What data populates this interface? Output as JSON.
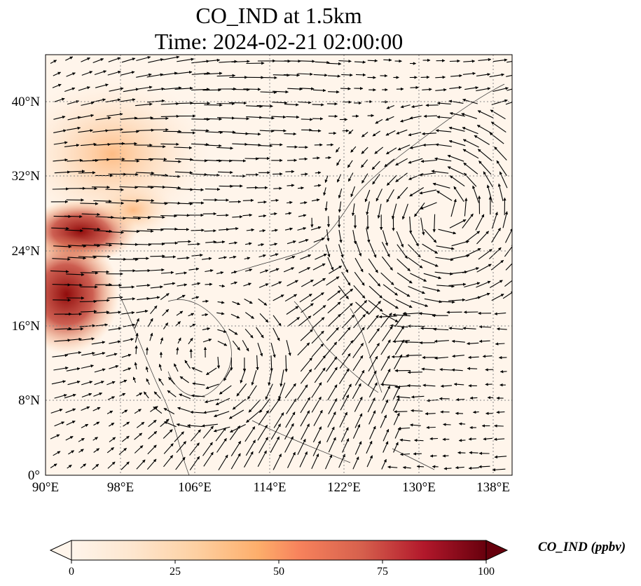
{
  "map": {
    "title_line1": "CO_IND at 1.5km",
    "title_line2": "Time: 2024-02-21 02:00:00",
    "lon_ticks": [
      "90°E",
      "98°E",
      "106°E",
      "114°E",
      "122°E",
      "130°E",
      "138°E"
    ],
    "lat_ticks": [
      "0°",
      "8°N",
      "16°N",
      "24°N",
      "32°N",
      "40°N"
    ],
    "lon_range": [
      90,
      140
    ],
    "lat_range": [
      0,
      45
    ],
    "gridlines": true
  },
  "colorbar": {
    "label": "CO_IND (ppbv)",
    "ticks": [
      "0",
      "25",
      "50",
      "75",
      "100"
    ],
    "range": [
      0,
      100
    ],
    "colormap_stops": [
      "#fff5eb",
      "#fee6ce",
      "#fdd0a2",
      "#fdae6b",
      "#fd8d3c",
      "#f16913",
      "#d94801",
      "#a63603",
      "#7f2704"
    ],
    "extend": "both"
  }
}
